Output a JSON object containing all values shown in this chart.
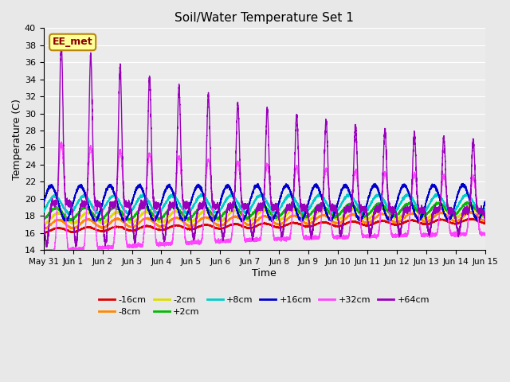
{
  "title": "Soil/Water Temperature Set 1",
  "xlabel": "Time",
  "ylabel": "Temperature (C)",
  "ylim": [
    14,
    40
  ],
  "yticks": [
    14,
    16,
    18,
    20,
    22,
    24,
    26,
    28,
    30,
    32,
    34,
    36,
    38,
    40
  ],
  "annotation_text": "EE_met",
  "annotation_color": "#8B0000",
  "annotation_bg": "#FFFF99",
  "annotation_border": "#B8860B",
  "series": {
    "-16cm": {
      "color": "#DD0000"
    },
    "-8cm": {
      "color": "#FF8800"
    },
    "-2cm": {
      "color": "#DDDD00"
    },
    "+2cm": {
      "color": "#00BB00"
    },
    "+8cm": {
      "color": "#00CCCC"
    },
    "+16cm": {
      "color": "#0000CC"
    },
    "+32cm": {
      "color": "#FF44FF"
    },
    "+64cm": {
      "color": "#9900BB"
    }
  },
  "bg_color": "#E8E8E8",
  "plot_bg": "#EBEBEB",
  "grid_color": "#FFFFFF",
  "figsize": [
    6.4,
    4.8
  ],
  "dpi": 100
}
